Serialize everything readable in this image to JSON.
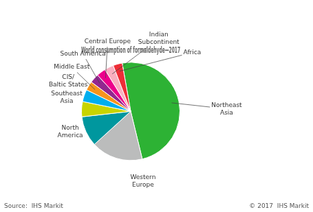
{
  "chart_data": {
    "type": "pie",
    "title": "World consumption of formaldehyde—2017",
    "categories": [
      "Northeast\nAsia",
      "Western\nEurope",
      "North\nAmerica",
      "Southeast\nAsia",
      "CIS/\nBaltic States",
      "Middle East",
      "South America",
      "Central Europe",
      "Indian\nSubcontinent",
      "Africa"
    ],
    "values": [
      49,
      17,
      10,
      5,
      4,
      3,
      3,
      3,
      3,
      3
    ],
    "colors": [
      "#2db234",
      "#bbbcbc",
      "#00979e",
      "#c8d400",
      "#00aeef",
      "#f7941d",
      "#92278f",
      "#ec008c",
      "#f9afc0",
      "#ee2d37"
    ],
    "annotations": [
      "Source:  IHS Markit",
      "© 2017  IHS Markit"
    ]
  }
}
